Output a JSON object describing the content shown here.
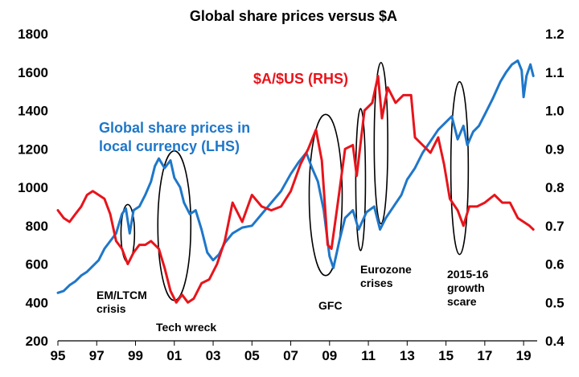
{
  "chart_data": {
    "type": "line",
    "title": "Global share prices versus $A",
    "x_ticks": [
      "95",
      "97",
      "99",
      "01",
      "03",
      "05",
      "07",
      "09",
      "11",
      "13",
      "15",
      "17",
      "19"
    ],
    "y_left_ticks": [
      "200",
      "400",
      "600",
      "800",
      "1000",
      "1200",
      "1400",
      "1600",
      "1800"
    ],
    "y_right_ticks": [
      "0.4",
      "0.5",
      "0.6",
      "0.7",
      "0.8",
      "0.9",
      "1.0",
      "1.1",
      "1.2"
    ],
    "ylim_left": [
      200,
      1800
    ],
    "ylim_right": [
      0.4,
      1.2
    ],
    "xlim": [
      1995.0,
      2019.7
    ],
    "grid": false,
    "series": [
      {
        "name": "Global share prices in local currency (LHS)",
        "axis": "left",
        "color": "#1f77c9",
        "points": [
          [
            1995.0,
            450
          ],
          [
            1995.3,
            460
          ],
          [
            1995.6,
            490
          ],
          [
            1995.9,
            510
          ],
          [
            1996.2,
            540
          ],
          [
            1996.5,
            560
          ],
          [
            1996.8,
            590
          ],
          [
            1997.1,
            620
          ],
          [
            1997.4,
            680
          ],
          [
            1997.7,
            720
          ],
          [
            1998.0,
            760
          ],
          [
            1998.3,
            860
          ],
          [
            1998.5,
            890
          ],
          [
            1998.7,
            760
          ],
          [
            1998.9,
            880
          ],
          [
            1999.2,
            900
          ],
          [
            1999.5,
            960
          ],
          [
            1999.8,
            1030
          ],
          [
            2000.0,
            1110
          ],
          [
            2000.2,
            1150
          ],
          [
            2000.5,
            1100
          ],
          [
            2000.8,
            1140
          ],
          [
            2001.0,
            1050
          ],
          [
            2001.3,
            1000
          ],
          [
            2001.5,
            920
          ],
          [
            2001.8,
            860
          ],
          [
            2002.1,
            880
          ],
          [
            2002.4,
            780
          ],
          [
            2002.7,
            660
          ],
          [
            2003.0,
            620
          ],
          [
            2003.3,
            650
          ],
          [
            2003.6,
            710
          ],
          [
            2004.0,
            760
          ],
          [
            2004.5,
            790
          ],
          [
            2005.0,
            800
          ],
          [
            2005.5,
            860
          ],
          [
            2006.0,
            920
          ],
          [
            2006.5,
            980
          ],
          [
            2007.0,
            1070
          ],
          [
            2007.4,
            1130
          ],
          [
            2007.8,
            1180
          ],
          [
            2008.1,
            1100
          ],
          [
            2008.4,
            1030
          ],
          [
            2008.7,
            880
          ],
          [
            2009.0,
            640
          ],
          [
            2009.2,
            580
          ],
          [
            2009.5,
            720
          ],
          [
            2009.8,
            840
          ],
          [
            2010.2,
            880
          ],
          [
            2010.5,
            780
          ],
          [
            2010.9,
            870
          ],
          [
            2011.3,
            900
          ],
          [
            2011.6,
            780
          ],
          [
            2011.9,
            840
          ],
          [
            2012.3,
            900
          ],
          [
            2012.7,
            960
          ],
          [
            2013.0,
            1040
          ],
          [
            2013.4,
            1100
          ],
          [
            2013.8,
            1180
          ],
          [
            2014.2,
            1240
          ],
          [
            2014.6,
            1300
          ],
          [
            2015.0,
            1340
          ],
          [
            2015.3,
            1370
          ],
          [
            2015.6,
            1250
          ],
          [
            2015.9,
            1320
          ],
          [
            2016.1,
            1220
          ],
          [
            2016.4,
            1290
          ],
          [
            2016.7,
            1320
          ],
          [
            2017.0,
            1380
          ],
          [
            2017.4,
            1460
          ],
          [
            2017.8,
            1550
          ],
          [
            2018.1,
            1600
          ],
          [
            2018.4,
            1640
          ],
          [
            2018.7,
            1660
          ],
          [
            2018.9,
            1610
          ],
          [
            2019.0,
            1470
          ],
          [
            2019.15,
            1580
          ],
          [
            2019.35,
            1640
          ],
          [
            2019.5,
            1580
          ]
        ]
      },
      {
        "name": "$A/$US (RHS)",
        "axis": "right",
        "color": "#e8141b",
        "points": [
          [
            1995.0,
            0.74
          ],
          [
            1995.3,
            0.72
          ],
          [
            1995.6,
            0.71
          ],
          [
            1995.9,
            0.73
          ],
          [
            1996.2,
            0.75
          ],
          [
            1996.5,
            0.78
          ],
          [
            1996.8,
            0.79
          ],
          [
            1997.1,
            0.78
          ],
          [
            1997.4,
            0.77
          ],
          [
            1997.7,
            0.73
          ],
          [
            1998.0,
            0.66
          ],
          [
            1998.3,
            0.64
          ],
          [
            1998.6,
            0.6
          ],
          [
            1998.9,
            0.63
          ],
          [
            1999.2,
            0.65
          ],
          [
            1999.5,
            0.65
          ],
          [
            1999.8,
            0.66
          ],
          [
            2000.2,
            0.64
          ],
          [
            2000.5,
            0.59
          ],
          [
            2000.8,
            0.53
          ],
          [
            2001.1,
            0.5
          ],
          [
            2001.4,
            0.52
          ],
          [
            2001.7,
            0.5
          ],
          [
            2002.0,
            0.51
          ],
          [
            2002.4,
            0.55
          ],
          [
            2002.8,
            0.56
          ],
          [
            2003.2,
            0.6
          ],
          [
            2003.6,
            0.66
          ],
          [
            2004.0,
            0.76
          ],
          [
            2004.5,
            0.71
          ],
          [
            2005.0,
            0.78
          ],
          [
            2005.5,
            0.75
          ],
          [
            2006.0,
            0.74
          ],
          [
            2006.5,
            0.75
          ],
          [
            2007.0,
            0.79
          ],
          [
            2007.5,
            0.86
          ],
          [
            2007.9,
            0.9
          ],
          [
            2008.3,
            0.95
          ],
          [
            2008.6,
            0.87
          ],
          [
            2008.9,
            0.65
          ],
          [
            2009.1,
            0.64
          ],
          [
            2009.4,
            0.75
          ],
          [
            2009.8,
            0.9
          ],
          [
            2010.2,
            0.91
          ],
          [
            2010.4,
            0.83
          ],
          [
            2010.8,
            1.0
          ],
          [
            2011.2,
            1.02
          ],
          [
            2011.5,
            1.09
          ],
          [
            2011.7,
            0.98
          ],
          [
            2012.0,
            1.06
          ],
          [
            2012.4,
            1.02
          ],
          [
            2012.8,
            1.04
          ],
          [
            2013.2,
            1.04
          ],
          [
            2013.4,
            0.93
          ],
          [
            2013.8,
            0.91
          ],
          [
            2014.2,
            0.89
          ],
          [
            2014.6,
            0.93
          ],
          [
            2014.9,
            0.86
          ],
          [
            2015.2,
            0.77
          ],
          [
            2015.6,
            0.74
          ],
          [
            2015.9,
            0.7
          ],
          [
            2016.2,
            0.75
          ],
          [
            2016.6,
            0.75
          ],
          [
            2017.0,
            0.76
          ],
          [
            2017.5,
            0.78
          ],
          [
            2017.9,
            0.76
          ],
          [
            2018.3,
            0.76
          ],
          [
            2018.7,
            0.72
          ],
          [
            2019.0,
            0.71
          ],
          [
            2019.3,
            0.7
          ],
          [
            2019.5,
            0.69
          ]
        ]
      }
    ],
    "annotations": [
      {
        "id": "em-ltcm",
        "lines": [
          "EM/LTCM",
          "crisis"
        ],
        "ellipse": {
          "cx": 1998.6,
          "cy": 760,
          "rx": 0.35,
          "ry": 150
        }
      },
      {
        "id": "tech-wreck",
        "lines": [
          "Tech wreck"
        ],
        "ellipse": {
          "cx": 2001.0,
          "cy": 800,
          "rx": 0.85,
          "ry": 390
        }
      },
      {
        "id": "gfc",
        "lines": [
          "GFC"
        ],
        "ellipse": {
          "cx": 2008.8,
          "cy": 960,
          "rx": 0.85,
          "ry": 420
        }
      },
      {
        "id": "eurozone-a",
        "lines": [],
        "ellipse": {
          "cx": 2010.6,
          "cy": 1040,
          "rx": 0.25,
          "ry": 370
        }
      },
      {
        "id": "eurozone",
        "lines": [
          "Eurozone",
          "crises"
        ],
        "ellipse": {
          "cx": 2011.65,
          "cy": 1230,
          "rx": 0.35,
          "ry": 420
        }
      },
      {
        "id": "growth-scare",
        "lines": [
          "2015-16",
          "growth",
          "scare"
        ],
        "ellipse": {
          "cx": 2015.7,
          "cy": 1100,
          "rx": 0.45,
          "ry": 450
        }
      }
    ]
  }
}
